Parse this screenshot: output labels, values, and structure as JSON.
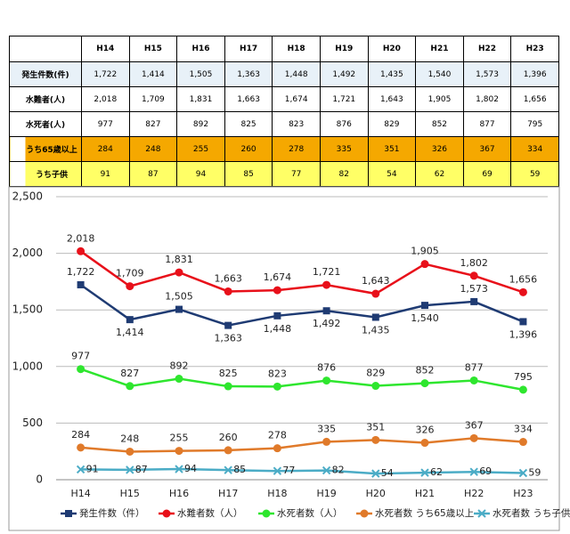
{
  "table": {
    "columns": [
      "H14",
      "H15",
      "H16",
      "H17",
      "H18",
      "H19",
      "H20",
      "H21",
      "H22",
      "H23"
    ],
    "rows": [
      {
        "label": "発生件数(件)",
        "cells": [
          "1,722",
          "1,414",
          "1,505",
          "1,363",
          "1,448",
          "1,492",
          "1,435",
          "1,540",
          "1,573",
          "1,396"
        ]
      },
      {
        "label": "水難者(人)",
        "cells": [
          "2,018",
          "1,709",
          "1,831",
          "1,663",
          "1,674",
          "1,721",
          "1,643",
          "1,905",
          "1,802",
          "1,656"
        ]
      },
      {
        "label": "水死者(人)",
        "cells": [
          "977",
          "827",
          "892",
          "825",
          "823",
          "876",
          "829",
          "852",
          "877",
          "795"
        ]
      },
      {
        "label": "うち65歳以上",
        "cells": [
          "284",
          "248",
          "255",
          "260",
          "278",
          "335",
          "351",
          "326",
          "367",
          "334"
        ]
      },
      {
        "label": "うち子供",
        "cells": [
          "91",
          "87",
          "94",
          "85",
          "77",
          "82",
          "54",
          "62",
          "69",
          "59"
        ]
      }
    ]
  },
  "chart_data": {
    "type": "line",
    "categories": [
      "H14",
      "H15",
      "H16",
      "H17",
      "H18",
      "H19",
      "H20",
      "H21",
      "H22",
      "H23"
    ],
    "ylim": [
      0,
      2500
    ],
    "yticks": [
      0,
      500,
      {
        "value": 1000,
        "label": "1,000"
      },
      {
        "value": 1500,
        "label": "1,500"
      },
      {
        "value": 2000,
        "label": "2,000"
      },
      {
        "value": 2500,
        "label": "2,500"
      }
    ],
    "grid": true,
    "series": [
      {
        "name": "発生件数（件）",
        "color": "#1f3b73",
        "marker": "square",
        "values": [
          1722,
          1414,
          1505,
          1363,
          1448,
          1492,
          1435,
          1540,
          1573,
          1396
        ],
        "value_labels": [
          "1,722",
          "1,414",
          "1,505",
          "1,363",
          "1,448",
          "1,492",
          "1,435",
          "1,540",
          "1,573",
          "1,396"
        ]
      },
      {
        "name": "水難者数（人）",
        "color": "#e8101a",
        "marker": "circle",
        "values": [
          2018,
          1709,
          1831,
          1663,
          1674,
          1721,
          1643,
          1905,
          1802,
          1656
        ],
        "value_labels": [
          "2,018",
          "1,709",
          "1,831",
          "1,663",
          "1,674",
          "1,721",
          "1,643",
          "1,905",
          "1,802",
          "1,656"
        ]
      },
      {
        "name": "水死者数（人）",
        "color": "#2ee62e",
        "marker": "circle",
        "values": [
          977,
          827,
          892,
          825,
          823,
          876,
          829,
          852,
          877,
          795
        ]
      },
      {
        "name": "水死者数 うち65歳以上",
        "color": "#e07a2a",
        "marker": "circle",
        "values": [
          284,
          248,
          255,
          260,
          278,
          335,
          351,
          326,
          367,
          334
        ]
      },
      {
        "name": "水死者数 うち子供",
        "color": "#4bacc6",
        "marker": "x",
        "values": [
          91,
          87,
          94,
          85,
          77,
          82,
          54,
          62,
          69,
          59
        ]
      }
    ]
  }
}
